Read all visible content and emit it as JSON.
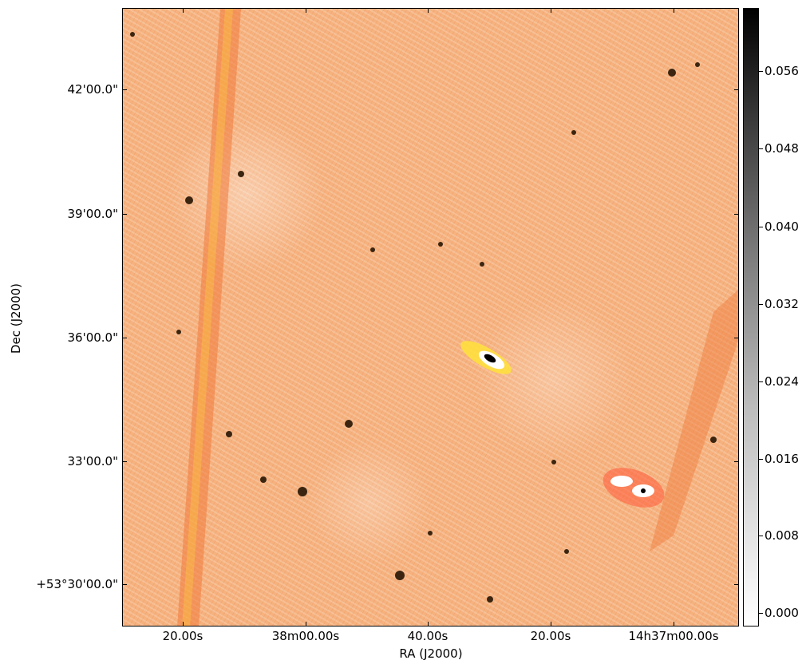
{
  "axes": {
    "xlabel": "RA (J2000)",
    "ylabel": "Dec (J2000)",
    "yticks": [
      "42'00.0\"",
      "39'00.0\"",
      "36'00.0\"",
      "33'00.0\"",
      "+53°30'00.0\""
    ],
    "xticks": [
      "20.00s",
      "38m00.00s",
      "40.00s",
      "20.00s",
      "14h37m00.00s"
    ]
  },
  "colorbar": {
    "ticks": [
      "0.056",
      "0.048",
      "0.040",
      "0.032",
      "0.024",
      "0.016",
      "0.008",
      "0.000"
    ],
    "colors": {
      "min": "#ffffff",
      "max": "#000000"
    }
  },
  "image": {
    "colors": {
      "background": "#f5b27f",
      "streak": "#f07a3c",
      "highlight": "#ffe23a",
      "sources": "#3b2510"
    }
  }
}
